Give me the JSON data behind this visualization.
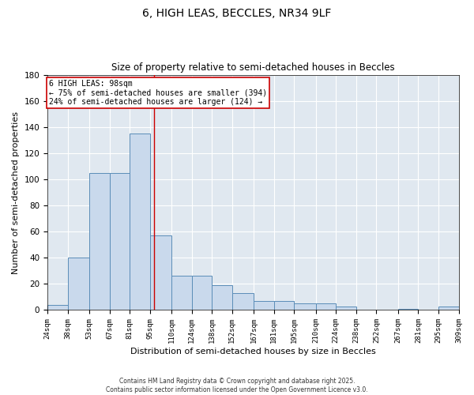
{
  "title1": "6, HIGH LEAS, BECCLES, NR34 9LF",
  "title2": "Size of property relative to semi-detached houses in Beccles",
  "xlabel": "Distribution of semi-detached houses by size in Beccles",
  "ylabel": "Number of semi-detached properties",
  "bin_edges": [
    24,
    38,
    53,
    67,
    81,
    95,
    110,
    124,
    138,
    152,
    167,
    181,
    195,
    210,
    224,
    238,
    252,
    267,
    281,
    295,
    309
  ],
  "bar_heights": [
    4,
    40,
    105,
    105,
    135,
    57,
    26,
    26,
    19,
    13,
    7,
    7,
    5,
    5,
    3,
    0,
    0,
    1,
    0,
    3
  ],
  "bar_color": "#c9d9ec",
  "bar_edge_color": "#5b8db8",
  "vline_x": 98,
  "vline_color": "#cc0000",
  "annotation_title": "6 HIGH LEAS: 98sqm",
  "annotation_line1": "← 75% of semi-detached houses are smaller (394)",
  "annotation_line2": "24% of semi-detached houses are larger (124) →",
  "annotation_box_color": "#ffffff",
  "annotation_box_edge": "#cc0000",
  "ylim": [
    0,
    180
  ],
  "xlim": [
    24,
    309
  ],
  "background_color": "#e0e8f0",
  "grid_color": "#ffffff",
  "footnote1": "Contains HM Land Registry data © Crown copyright and database right 2025.",
  "footnote2": "Contains public sector information licensed under the Open Government Licence v3.0."
}
